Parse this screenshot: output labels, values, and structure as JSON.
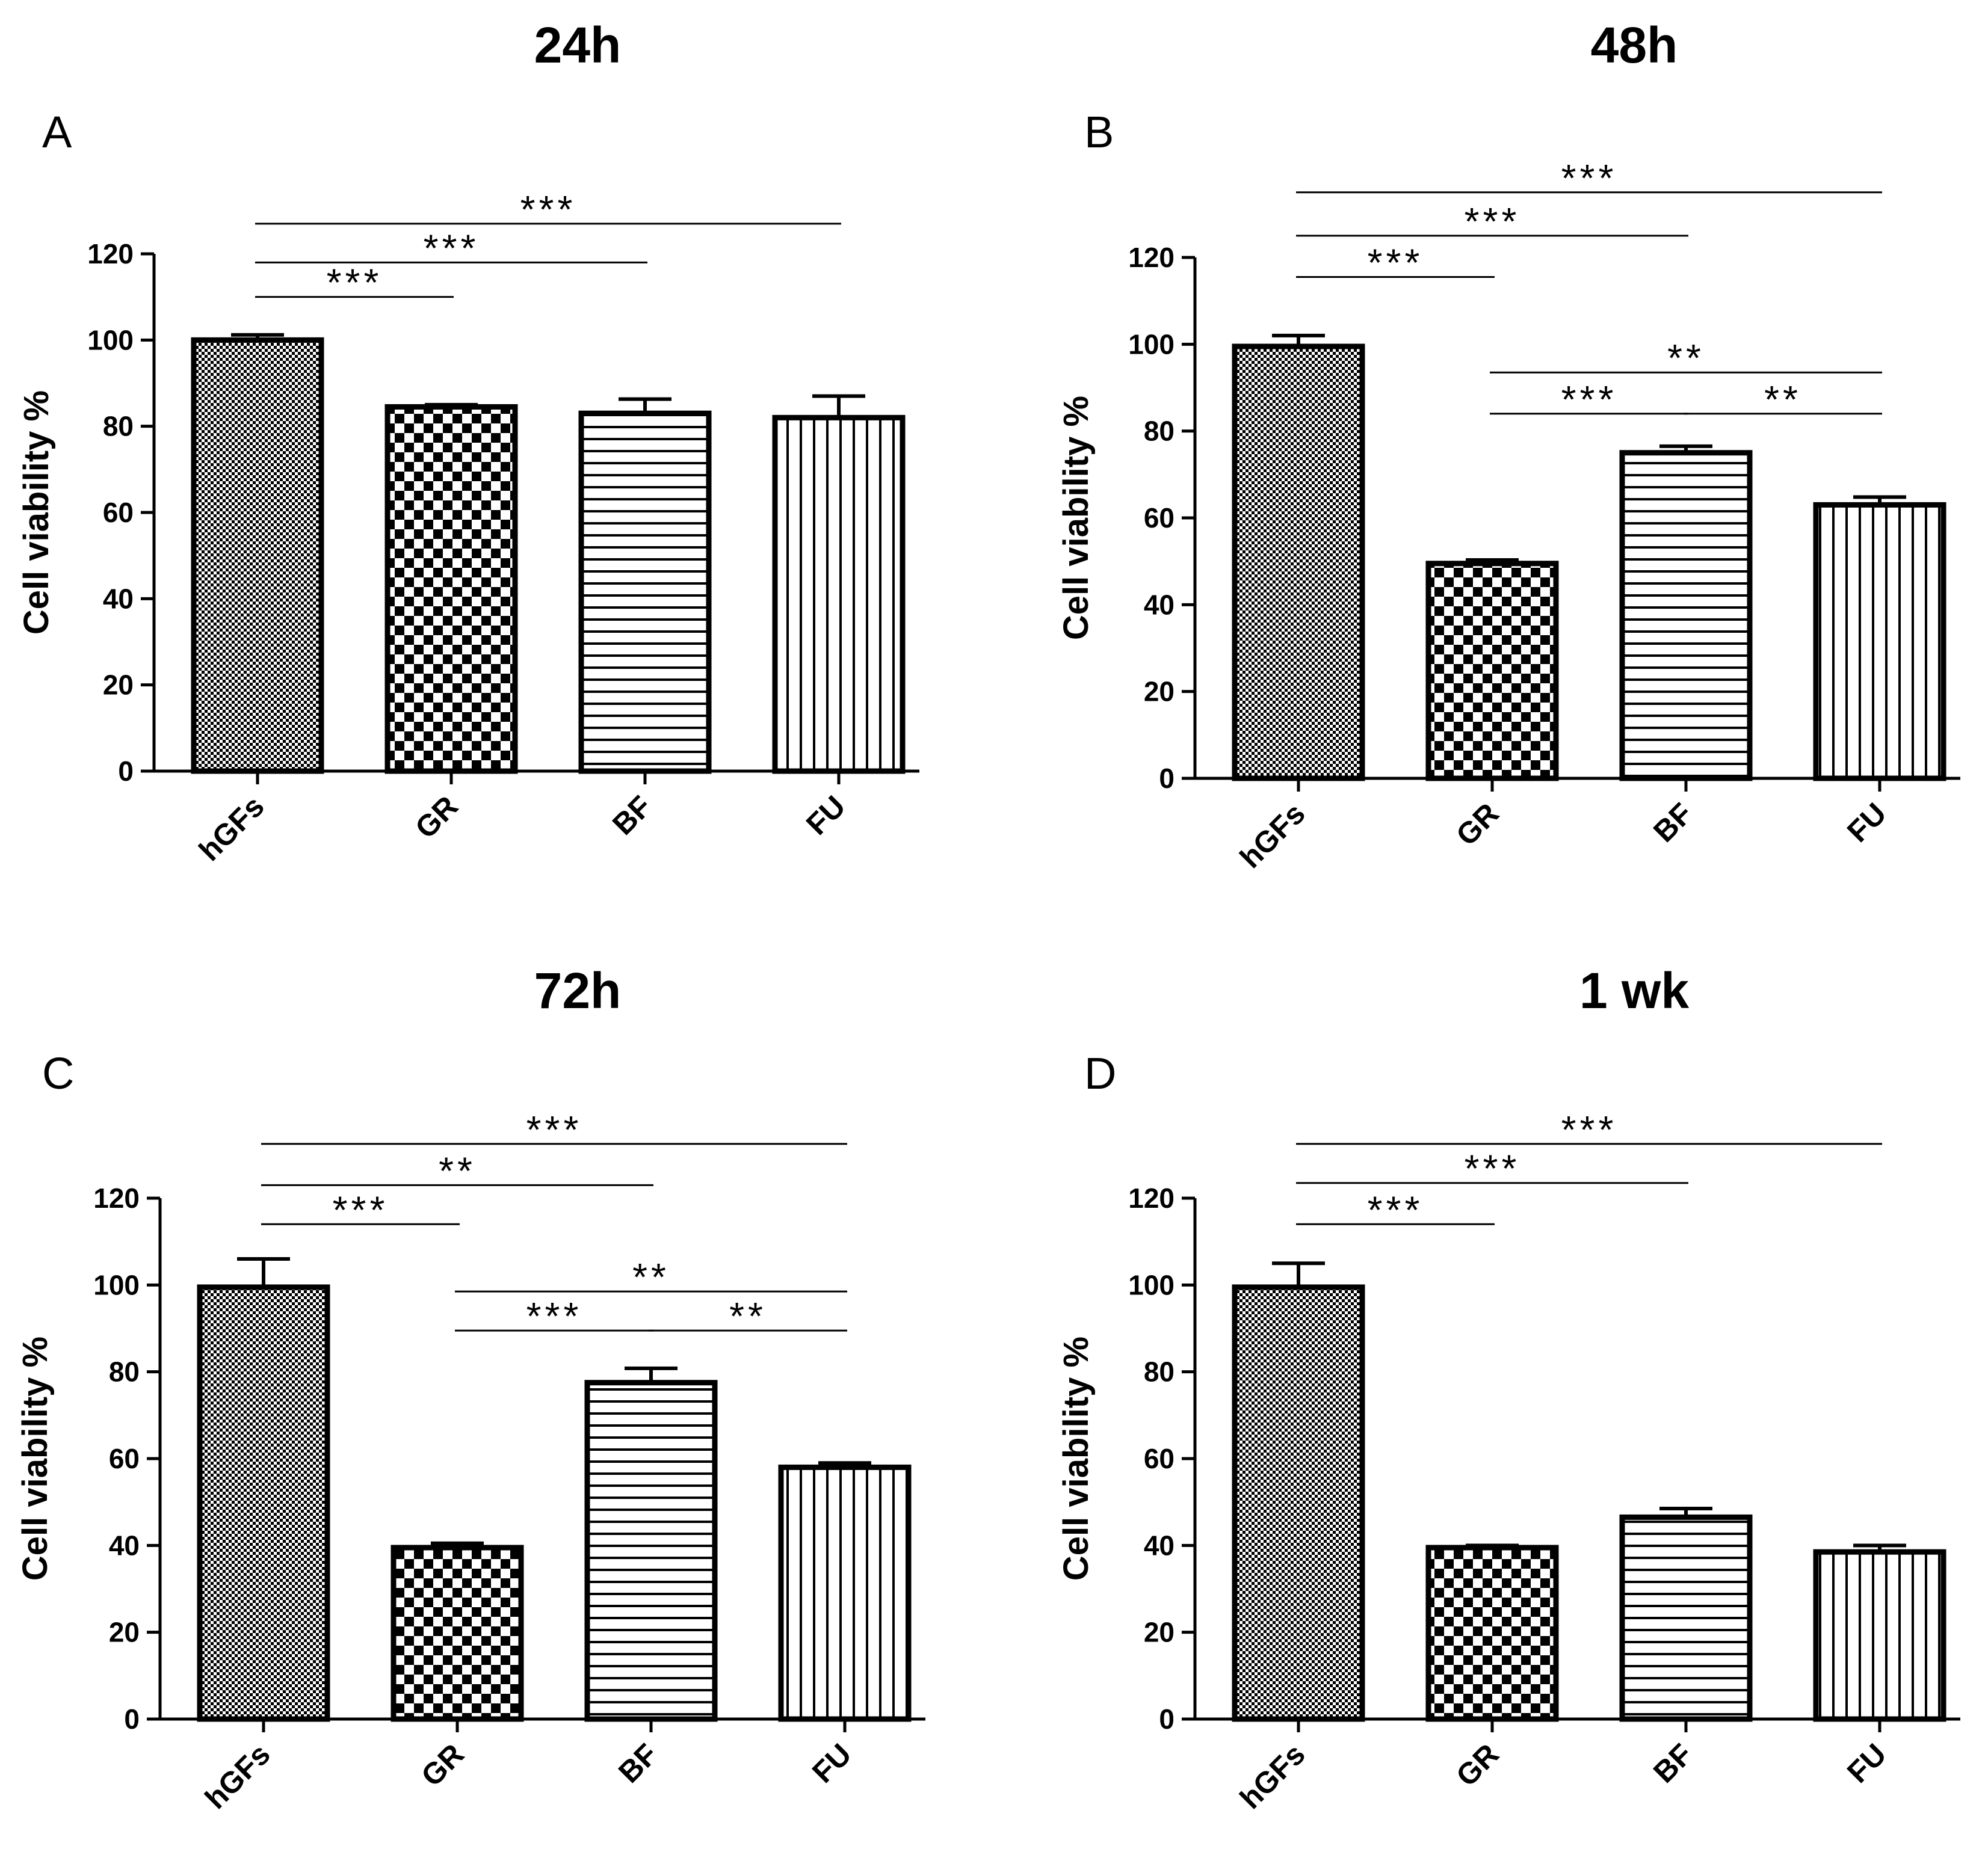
{
  "figure": {
    "background": "#ffffff",
    "ink": "#000000"
  },
  "chart_data": [
    {
      "panel": "A",
      "title": "24h",
      "type": "bar",
      "categories": [
        "hGFs",
        "GR",
        "BF",
        "FU"
      ],
      "values": [
        100,
        84.5,
        83,
        82
      ],
      "errors": [
        1.2,
        0.5,
        3.3,
        5
      ],
      "patterns": [
        "fine-checker",
        "checker",
        "horizontal-lines",
        "vertical-lines"
      ],
      "ylabel": "Cell viability %",
      "xlabel": "",
      "ylim": [
        0,
        120
      ],
      "yticks": [
        0,
        20,
        40,
        60,
        80,
        100,
        120
      ],
      "yticklabels": [
        "0",
        "20",
        "40",
        "60",
        "80",
        "100",
        "120"
      ],
      "significance": [
        {
          "from": 0,
          "to": 3,
          "label": "***",
          "y": 127
        },
        {
          "from": 0,
          "to": 2,
          "label": "***",
          "y": 118
        },
        {
          "from": 0,
          "to": 1,
          "label": "***",
          "y": 110
        }
      ]
    },
    {
      "panel": "B",
      "title": "48h",
      "type": "bar",
      "categories": [
        "hGFs",
        "GR",
        "BF",
        "FU"
      ],
      "values": [
        99.5,
        49.5,
        75,
        63
      ],
      "errors": [
        2.5,
        0.8,
        1.5,
        1.8
      ],
      "patterns": [
        "fine-checker",
        "checker",
        "horizontal-lines",
        "vertical-lines"
      ],
      "ylabel": "Cell viability %",
      "xlabel": "",
      "ylim": [
        0,
        120
      ],
      "yticks": [
        0,
        20,
        40,
        60,
        80,
        100,
        120
      ],
      "yticklabels": [
        "0",
        "20",
        "40",
        "60",
        "80",
        "100",
        "120"
      ],
      "significance": [
        {
          "from": 0,
          "to": 3,
          "label": "***",
          "y": 135
        },
        {
          "from": 0,
          "to": 2,
          "label": "***",
          "y": 125
        },
        {
          "from": 0,
          "to": 1,
          "label": "***",
          "y": 115.5
        },
        {
          "from": 1,
          "to": 3,
          "label": "**",
          "y": 93.5
        },
        {
          "from": 1,
          "to": 2,
          "label": "***",
          "y": 84
        },
        {
          "from": 2,
          "to": 3,
          "label": "**",
          "y": 84
        }
      ]
    },
    {
      "panel": "C",
      "title": "72h",
      "type": "bar",
      "categories": [
        "hGFs",
        "GR",
        "BF",
        "FU"
      ],
      "values": [
        99.5,
        39.5,
        77.5,
        58
      ],
      "errors": [
        6.5,
        1,
        3.3,
        1
      ],
      "patterns": [
        "fine-checker",
        "checker",
        "horizontal-lines",
        "vertical-lines"
      ],
      "ylabel": "Cell viability %",
      "xlabel": "",
      "ylim": [
        0,
        120
      ],
      "yticks": [
        0,
        20,
        40,
        60,
        80,
        100,
        120
      ],
      "yticklabels": [
        "0",
        "20",
        "40",
        "60",
        "80",
        "100",
        "120"
      ],
      "significance": [
        {
          "from": 0,
          "to": 3,
          "label": "***",
          "y": 132.5
        },
        {
          "from": 0,
          "to": 2,
          "label": "**",
          "y": 123
        },
        {
          "from": 0,
          "to": 1,
          "label": "***",
          "y": 114
        },
        {
          "from": 1,
          "to": 3,
          "label": "**",
          "y": 98.5
        },
        {
          "from": 1,
          "to": 2,
          "label": "***",
          "y": 89.5
        },
        {
          "from": 2,
          "to": 3,
          "label": "**",
          "y": 89.5
        }
      ]
    },
    {
      "panel": "D",
      "title": "1 wk",
      "type": "bar",
      "categories": [
        "hGFs",
        "GR",
        "BF",
        "FU"
      ],
      "values": [
        99.5,
        39.5,
        46.5,
        38.5
      ],
      "errors": [
        5.5,
        0.5,
        2,
        1.5
      ],
      "patterns": [
        "fine-checker",
        "checker",
        "horizontal-lines",
        "vertical-lines"
      ],
      "ylabel": "Cell viability %",
      "xlabel": "",
      "ylim": [
        0,
        120
      ],
      "yticks": [
        0,
        20,
        40,
        60,
        80,
        100,
        120
      ],
      "yticklabels": [
        "0",
        "20",
        "40",
        "60",
        "80",
        "100",
        "120"
      ],
      "significance": [
        {
          "from": 0,
          "to": 3,
          "label": "***",
          "y": 132.5
        },
        {
          "from": 0,
          "to": 2,
          "label": "***",
          "y": 123.5
        },
        {
          "from": 0,
          "to": 1,
          "label": "***",
          "y": 114
        }
      ]
    }
  ]
}
